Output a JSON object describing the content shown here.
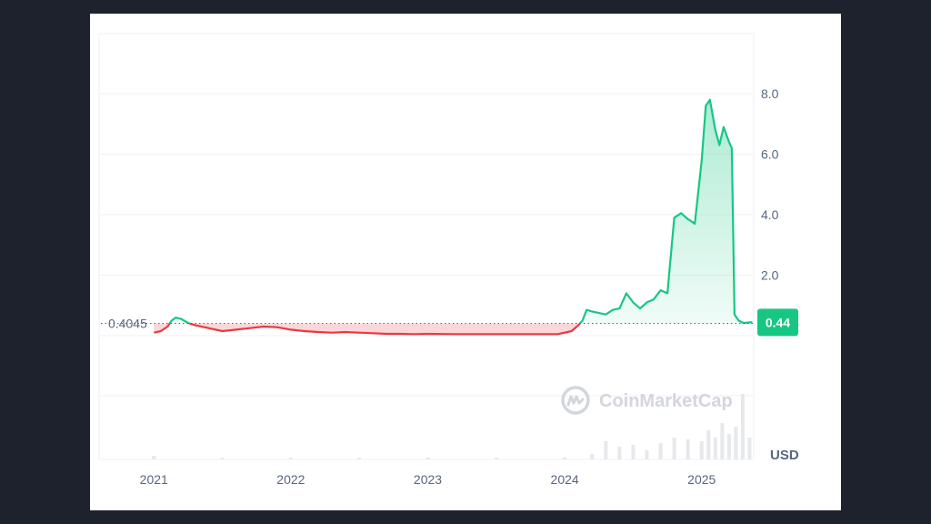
{
  "colors": {
    "up": "#16c784",
    "down": "#ea3943",
    "grid": "#eff2f5",
    "text": "#58667e",
    "background": "#ffffff",
    "frame": "#1e222d",
    "volume": "#e6e8ec"
  },
  "watermark": {
    "icon": "coinmarketcap-logo-icon",
    "text": "CoinMarketCap"
  },
  "chart_data": {
    "type": "area",
    "currency": "USD",
    "reference_label": "0.4045",
    "reference_value": 0.4045,
    "current_price_label": "0.44",
    "current_price": 0.44,
    "ylim": [
      -2,
      10
    ],
    "y_ticks": [
      2.0,
      4.0,
      6.0,
      8.0
    ],
    "y_tick_labels": [
      "2.0",
      "4.0",
      "6.0",
      "8.0"
    ],
    "xlim": [
      2020.6,
      2025.38
    ],
    "x_ticks": [
      2021,
      2022,
      2023,
      2024,
      2025
    ],
    "x_tick_labels": [
      "2021",
      "2022",
      "2023",
      "2024",
      "2025"
    ],
    "grid": true,
    "series": [
      {
        "x": [
          2021.0,
          2021.05,
          2021.1,
          2021.13,
          2021.16,
          2021.2,
          2021.25,
          2021.3,
          2021.4,
          2021.5,
          2021.6,
          2021.7,
          2021.8,
          2021.9,
          2022.0,
          2022.1,
          2022.2,
          2022.3,
          2022.4,
          2022.5,
          2022.6,
          2022.7,
          2022.8,
          2022.9,
          2023.0,
          2023.2,
          2023.4,
          2023.6,
          2023.8,
          2023.95,
          2024.05,
          2024.1,
          2024.13,
          2024.16,
          2024.2,
          2024.25,
          2024.3,
          2024.35,
          2024.4,
          2024.45,
          2024.5,
          2024.55,
          2024.6,
          2024.65,
          2024.7,
          2024.75,
          2024.8,
          2024.85,
          2024.9,
          2024.92,
          2024.95,
          2025.0,
          2025.03,
          2025.06,
          2025.1,
          2025.13,
          2025.16,
          2025.2,
          2025.22,
          2025.24,
          2025.27,
          2025.29,
          2025.31,
          2025.33,
          2025.35,
          2025.37
        ],
        "y": [
          0.1,
          0.15,
          0.3,
          0.5,
          0.6,
          0.55,
          0.42,
          0.35,
          0.25,
          0.15,
          0.2,
          0.25,
          0.3,
          0.28,
          0.2,
          0.15,
          0.12,
          0.1,
          0.12,
          0.1,
          0.08,
          0.06,
          0.06,
          0.05,
          0.06,
          0.05,
          0.05,
          0.05,
          0.05,
          0.05,
          0.15,
          0.35,
          0.5,
          0.85,
          0.8,
          0.75,
          0.7,
          0.85,
          0.9,
          1.4,
          1.1,
          0.9,
          1.1,
          1.2,
          1.5,
          1.4,
          3.9,
          4.05,
          3.85,
          3.8,
          3.7,
          5.8,
          7.6,
          7.8,
          6.8,
          6.3,
          6.9,
          6.4,
          6.2,
          0.7,
          0.5,
          0.45,
          0.42,
          0.43,
          0.44,
          0.44
        ]
      }
    ],
    "volume": {
      "x": [
        2021.0,
        2021.5,
        2022.0,
        2022.5,
        2023.0,
        2023.5,
        2024.0,
        2024.2,
        2024.3,
        2024.4,
        2024.5,
        2024.6,
        2024.7,
        2024.8,
        2024.9,
        2025.0,
        2025.05,
        2025.1,
        2025.15,
        2025.2,
        2025.25,
        2025.3,
        2025.35
      ],
      "y": [
        0.1,
        0.05,
        0.05,
        0.03,
        0.02,
        0.02,
        0.03,
        0.15,
        0.5,
        0.35,
        0.4,
        0.25,
        0.45,
        0.6,
        0.55,
        0.5,
        0.8,
        0.6,
        1.0,
        0.7,
        0.9,
        1.8,
        0.6
      ]
    }
  }
}
